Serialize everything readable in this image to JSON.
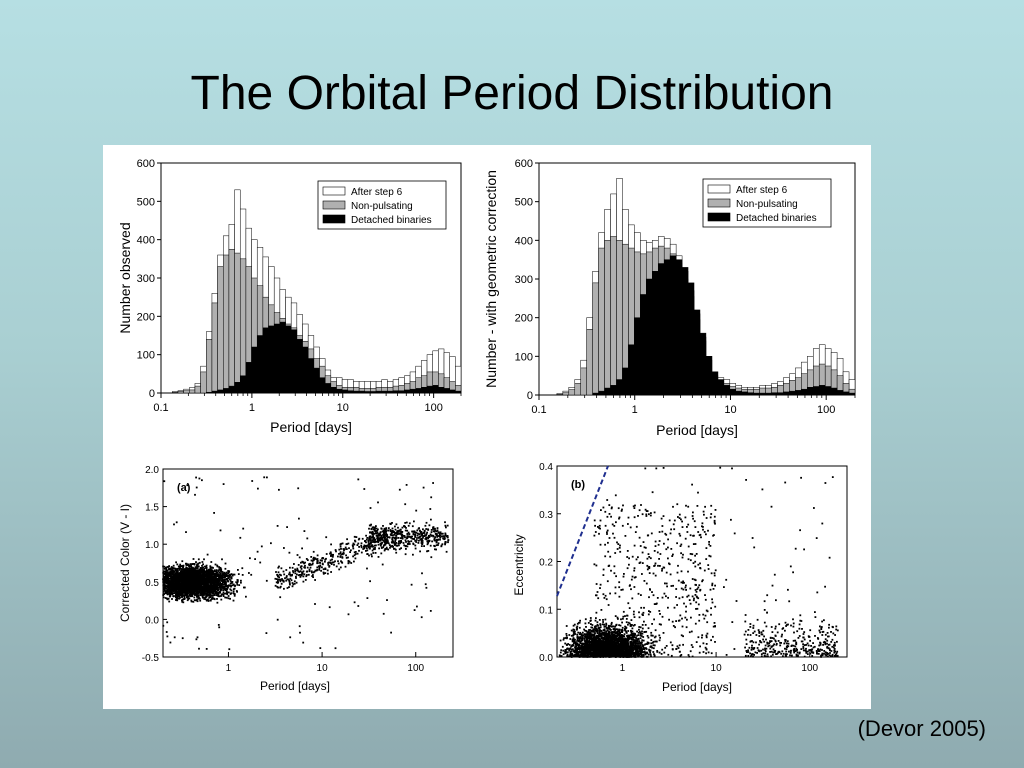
{
  "slide": {
    "title": "The Orbital Period Distribution",
    "citation": "(Devor 2005)"
  },
  "colors": {
    "background_top": "#b6dfe3",
    "background_bottom": "#8fabb0",
    "after_step6": "#ffffff",
    "non_pulsating": "#b0b0b0",
    "detached": "#000000",
    "dashed_line": "#1f2f8f"
  },
  "chart_data": [
    {
      "type": "bar",
      "id": "hist-observed",
      "xlabel": "Period  [days]",
      "ylabel": "Number observed",
      "xscale": "log",
      "xlim": [
        0.1,
        200
      ],
      "ylim": [
        0,
        600
      ],
      "xticks": [
        "0.1",
        "1",
        "10",
        "100"
      ],
      "yticks": [
        "0",
        "100",
        "200",
        "300",
        "400",
        "500",
        "600"
      ],
      "legend_position": "top-right",
      "series": [
        {
          "name": "After step 6",
          "values": [
            0,
            0,
            4,
            6,
            10,
            14,
            25,
            70,
            160,
            260,
            360,
            410,
            440,
            530,
            480,
            430,
            400,
            380,
            355,
            330,
            300,
            270,
            250,
            235,
            205,
            180,
            150,
            120,
            90,
            60,
            40,
            40,
            35,
            35,
            30,
            30,
            30,
            30,
            30,
            35,
            30,
            35,
            40,
            45,
            55,
            70,
            85,
            100,
            110,
            115,
            105,
            95,
            70
          ]
        },
        {
          "name": "Non-pulsating",
          "values": [
            0,
            0,
            2,
            4,
            6,
            8,
            18,
            55,
            140,
            235,
            330,
            360,
            375,
            365,
            350,
            330,
            300,
            280,
            250,
            230,
            210,
            195,
            180,
            170,
            150,
            135,
            115,
            90,
            70,
            45,
            30,
            20,
            15,
            15,
            15,
            12,
            12,
            12,
            15,
            15,
            15,
            18,
            20,
            25,
            30,
            40,
            45,
            55,
            55,
            50,
            40,
            30,
            20
          ]
        },
        {
          "name": "Detached binaries",
          "values": [
            0,
            0,
            0,
            0,
            0,
            0,
            0,
            0,
            2,
            5,
            8,
            12,
            18,
            28,
            45,
            80,
            120,
            150,
            170,
            175,
            180,
            185,
            175,
            165,
            140,
            120,
            90,
            65,
            40,
            25,
            15,
            10,
            8,
            6,
            5,
            5,
            4,
            4,
            5,
            5,
            5,
            6,
            6,
            8,
            10,
            12,
            15,
            18,
            20,
            15,
            12,
            8,
            5
          ]
        }
      ]
    },
    {
      "type": "bar",
      "id": "hist-corrected",
      "xlabel": "Period  [days]",
      "ylabel": "Number - with geometric correction",
      "xscale": "log",
      "xlim": [
        0.1,
        200
      ],
      "ylim": [
        0,
        600
      ],
      "xticks": [
        "0.1",
        "1",
        "10",
        "100"
      ],
      "yticks": [
        "0",
        "100",
        "200",
        "300",
        "400",
        "500",
        "600"
      ],
      "legend_position": "top-right",
      "series": [
        {
          "name": "After step 6",
          "values": [
            0,
            0,
            0,
            4,
            10,
            20,
            40,
            90,
            200,
            320,
            420,
            480,
            520,
            560,
            480,
            440,
            420,
            400,
            395,
            400,
            410,
            405,
            390,
            360,
            320,
            270,
            210,
            150,
            100,
            60,
            45,
            40,
            30,
            25,
            20,
            20,
            20,
            25,
            25,
            30,
            35,
            45,
            55,
            70,
            85,
            100,
            120,
            130,
            120,
            110,
            95,
            60,
            40
          ]
        },
        {
          "name": "Non-pulsating",
          "values": [
            0,
            0,
            0,
            2,
            6,
            14,
            30,
            70,
            170,
            290,
            380,
            400,
            410,
            400,
            390,
            380,
            370,
            365,
            370,
            380,
            385,
            380,
            365,
            340,
            300,
            255,
            195,
            140,
            90,
            50,
            35,
            30,
            22,
            18,
            15,
            15,
            15,
            18,
            18,
            20,
            25,
            30,
            38,
            45,
            55,
            65,
            75,
            80,
            75,
            65,
            50,
            30,
            15
          ]
        },
        {
          "name": "Detached binaries",
          "values": [
            0,
            0,
            0,
            0,
            0,
            0,
            0,
            0,
            0,
            5,
            10,
            18,
            25,
            40,
            70,
            130,
            200,
            260,
            300,
            320,
            340,
            350,
            360,
            350,
            330,
            290,
            220,
            160,
            100,
            60,
            40,
            25,
            15,
            10,
            8,
            6,
            5,
            5,
            5,
            6,
            6,
            8,
            10,
            12,
            15,
            20,
            22,
            25,
            22,
            18,
            12,
            8,
            5
          ]
        }
      ]
    },
    {
      "type": "scatter",
      "id": "scatter-color",
      "panel_label": "(a)",
      "xlabel": "Period [days]",
      "ylabel": "Corrected Color (V - I)",
      "xscale": "log",
      "xlim": [
        0.2,
        250
      ],
      "ylim": [
        -0.5,
        2.0
      ],
      "xticks": [
        "1",
        "10",
        "100"
      ],
      "yticks": [
        "-0.5",
        "0.0",
        "0.5",
        "1.0",
        "1.5",
        "2.0"
      ]
    },
    {
      "type": "scatter",
      "id": "scatter-ecc",
      "panel_label": "(b)",
      "xlabel": "Period [days]",
      "ylabel": "Eccentricity",
      "xscale": "log",
      "xlim": [
        0.2,
        250
      ],
      "ylim": [
        0.0,
        0.4
      ],
      "xticks": [
        "1",
        "10",
        "100"
      ],
      "yticks": [
        "0.0",
        "0.1",
        "0.2",
        "0.3",
        "0.4"
      ]
    }
  ]
}
